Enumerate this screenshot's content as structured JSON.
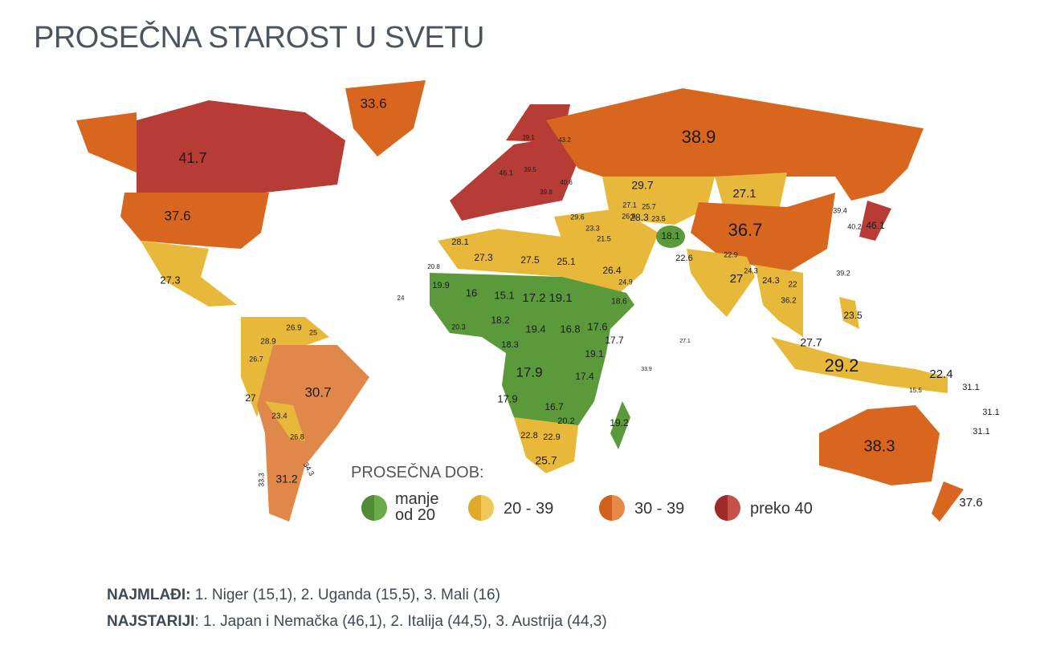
{
  "header": {
    "title": "PROSEČNA STAROST U SVETU"
  },
  "map_labels": [
    "33.6",
    "41.7",
    "37.6",
    "27.3",
    "38.9",
    "29.7",
    "27.1",
    "36.7",
    "18.1",
    "28.3",
    "22.6",
    "27",
    "22.9",
    "24.3",
    "24.3",
    "22",
    "36.2",
    "39.2",
    "23.5",
    "27.7",
    "29.2",
    "22.4",
    "31.1",
    "31.1",
    "31.1",
    "38.3",
    "37.6",
    "46.1",
    "40.2",
    "39.4",
    "28.1",
    "27.3",
    "27.5",
    "25.1",
    "26.4",
    "24.9",
    "18.6",
    "21.5",
    "23.3",
    "29.6",
    "26.6",
    "27.1",
    "25.7",
    "23.5",
    "19.9",
    "16",
    "15.1",
    "17.2",
    "19.1",
    "18.2",
    "19.4",
    "16.8",
    "17.6",
    "17.7",
    "19.1",
    "18.3",
    "17.9",
    "17.4",
    "17.9",
    "16.7",
    "20.2",
    "19.2",
    "22.8",
    "22.9",
    "25.7",
    "20.8",
    "20.3",
    "24",
    "27.1",
    "33.9",
    "15.5",
    "26.9",
    "25",
    "28.9",
    "26.7",
    "27",
    "30.7",
    "23.4",
    "26.8",
    "31.2",
    "33.3",
    "34.3",
    "46.1",
    "39.5",
    "40.6",
    "39.8",
    "43.2",
    "39.1"
  ],
  "legend": {
    "title": "PROSEČNA DOB:",
    "items": [
      "manje od 20",
      "20 - 39",
      "30 - 39",
      "preko 40"
    ]
  },
  "footer": {
    "lines": [
      {
        "label": "NAJMLAĐI:",
        "text": " 1. Niger (15,1), 2. Uganda (15,5), 3. Mali (16)"
      },
      {
        "label": "NAJSTARIJI",
        "text": ": 1. Japan i Nemačka (46,1), 2. Italija (44,5), 3. Austrija (44,3)"
      }
    ]
  }
}
